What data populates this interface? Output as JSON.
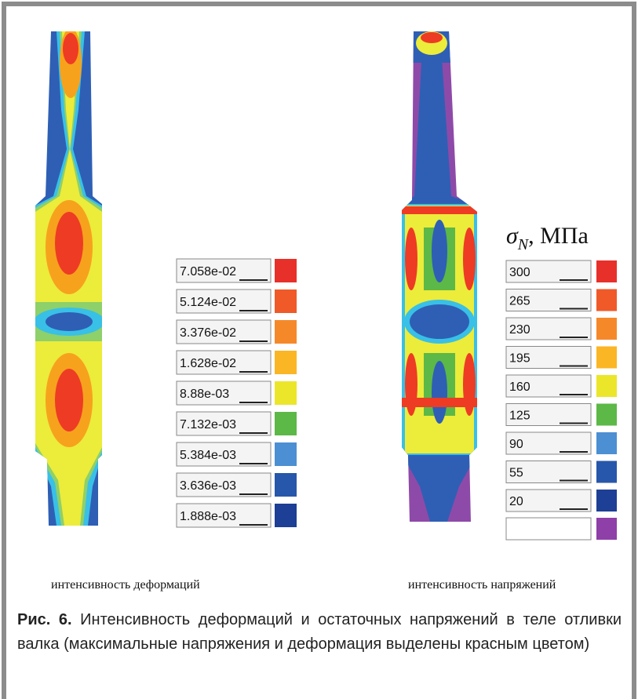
{
  "panels": [
    {
      "caption": "интенсивность деформаций",
      "legend": {
        "labels": [
          "7.058e-02",
          "5.124e-02",
          "3.376e-02",
          "1.628e-02",
          "8.88e-03",
          "7.132e-03",
          "5.384e-03",
          "3.636e-03",
          "1.888e-03"
        ],
        "colors": [
          "#e8302a",
          "#ef5a28",
          "#f5892a",
          "#fbb625",
          "#ece62a",
          "#5cb847",
          "#4c8fd3",
          "#2757aa",
          "#1d3f95"
        ]
      }
    },
    {
      "caption": "интенсивность напряжений",
      "legend": {
        "title": {
          "symbol": "σ",
          "subscript": "N",
          "unit": ", МПа"
        },
        "labels": [
          "300",
          "265",
          "230",
          "195",
          "160",
          "125",
          "90",
          "55",
          "20"
        ],
        "colors": [
          "#e8302a",
          "#ef5a28",
          "#f5892a",
          "#fbb625",
          "#ece62a",
          "#5cb847",
          "#4c8fd3",
          "#2757aa",
          "#1d3f95"
        ]
      }
    }
  ],
  "caption": {
    "label": "Рис. 6.",
    "text": "Интенсивность деформаций и остаточных напряжений в теле отливки валка (максимальные напряжения и деформация выделены красным цветом)"
  }
}
